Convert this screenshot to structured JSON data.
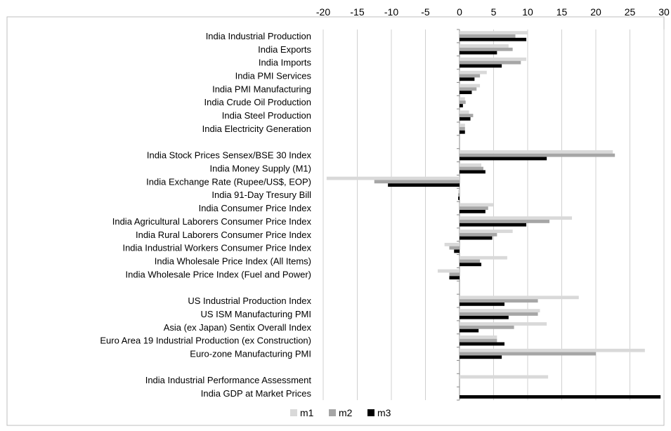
{
  "chart_data": {
    "type": "bar",
    "orientation": "horizontal",
    "x_ticks": [
      -20,
      -15,
      -10,
      -5,
      0,
      5,
      10,
      15,
      20,
      25,
      30
    ],
    "xlim": [
      -20,
      30
    ],
    "grid": true,
    "legend_position": "bottom",
    "colors": {
      "m1": "#d9d9d9",
      "m2": "#a6a6a6",
      "m3": "#000000"
    },
    "categories": [
      "India Industrial Production",
      "India Exports",
      "India Imports",
      "India PMI Services",
      "India PMI Manufacturing",
      "India Crude Oil Production",
      "India Steel Production",
      "India Electricity Generation",
      "",
      "India Stock Prices Sensex/BSE 30 Index",
      "India Money Supply (M1)",
      "India Exchange Rate (Rupee/US$, EOP)",
      "India 91-Day Tresury Bill",
      "India Consumer Price Index",
      "India Agricultural Laborers Consumer Price Index",
      "India Rural Laborers Consumer Price Index",
      "India Industrial Workers Consumer Price Index",
      "India Wholesale Price Index (All Items)",
      "India Wholesale Price Index (Fuel and Power)",
      "",
      "US Industrial Production Index",
      "US ISM Manufacturing PMI",
      "Asia (ex Japan) Sentix Overall Index",
      "Euro Area 19 Industrial Production (ex Construction)",
      "Euro-zone Manufacturing PMI",
      "",
      "India Industrial Performance Assessment",
      "India GDP at Market Prices"
    ],
    "series": [
      {
        "name": "m1",
        "values": [
          10.0,
          7.2,
          9.8,
          4.0,
          3.0,
          0.8,
          1.4,
          0.8,
          null,
          22.5,
          3.2,
          -19.5,
          -0.2,
          5.0,
          16.5,
          7.8,
          -2.2,
          7.0,
          -3.2,
          null,
          17.5,
          11.8,
          12.8,
          5.5,
          27.2,
          null,
          13.0,
          null
        ]
      },
      {
        "name": "m2",
        "values": [
          8.2,
          7.8,
          9.0,
          3.0,
          2.5,
          0.9,
          2.0,
          0.8,
          null,
          22.8,
          3.5,
          -12.5,
          -0.2,
          4.2,
          13.2,
          5.5,
          -1.5,
          3.0,
          -1.5,
          null,
          11.5,
          11.5,
          8.0,
          5.5,
          20.0,
          null,
          null,
          null
        ]
      },
      {
        "name": "m3",
        "values": [
          9.8,
          5.5,
          6.2,
          2.2,
          1.8,
          0.5,
          1.6,
          0.8,
          null,
          12.8,
          3.8,
          -10.5,
          -0.2,
          3.8,
          9.8,
          4.8,
          -0.8,
          3.2,
          -1.5,
          null,
          6.6,
          7.2,
          2.8,
          6.6,
          6.2,
          null,
          null,
          29.5
        ]
      }
    ]
  }
}
